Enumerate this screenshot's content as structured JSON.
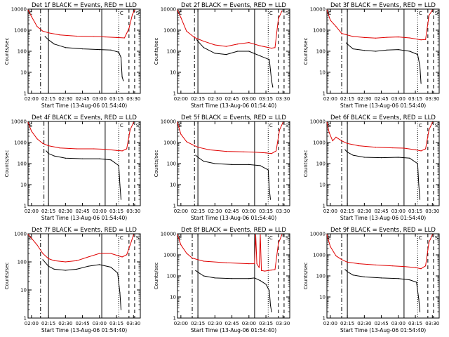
{
  "figure": {
    "colors": {
      "events": "#000000",
      "lld": "#e00000",
      "frame": "#000000"
    },
    "xlabel": "Start Time (13-Aug-06 01:54:40)",
    "ylabel": "Counts/sec",
    "x_tick_labels": [
      "02:00",
      "02:15",
      "02:30",
      "02:45",
      "03:00",
      "03:15",
      "03:30"
    ],
    "y_tick_labels": [
      "1",
      "10",
      "100",
      "1000",
      "10000"
    ],
    "corner_markers": [
      "E",
      "C",
      "S"
    ]
  },
  "chart_data": [
    {
      "type": "line",
      "title": "Det 1f BLACK = Events, RED = LLD",
      "xlabel": "Start Time (13-Aug-06 01:54:40)",
      "ylabel": "Counts/sec",
      "xlim": [
        "01:57",
        "03:36"
      ],
      "ylim": [
        1,
        10000
      ],
      "yscale": "log",
      "vlines": [
        {
          "t": "02:08",
          "style": "dashdot"
        },
        {
          "t": "02:15",
          "style": "solid"
        },
        {
          "t": "03:02",
          "style": "solid"
        },
        {
          "t": "03:17",
          "style": "dotted"
        },
        {
          "t": "03:26",
          "style": "dashed"
        },
        {
          "t": "03:31",
          "style": "dashed"
        }
      ],
      "series": [
        {
          "name": "LLD",
          "color": "#e00000",
          "x": [
            "01:57",
            "02:00",
            "02:05",
            "02:10",
            "02:15",
            "02:25",
            "02:40",
            "02:55",
            "03:05",
            "03:15",
            "03:22",
            "03:26",
            "03:29",
            "03:31"
          ],
          "y": [
            9000,
            4500,
            1500,
            900,
            750,
            600,
            520,
            500,
            480,
            450,
            430,
            1200,
            5500,
            9000
          ]
        },
        {
          "name": "Events",
          "color": "#000000",
          "x": [
            "02:12",
            "02:15",
            "02:20",
            "02:30",
            "02:45",
            "03:00",
            "03:10",
            "03:17",
            "03:19",
            "03:20",
            "03:21"
          ],
          "y": [
            500,
            350,
            220,
            150,
            130,
            120,
            115,
            90,
            50,
            6,
            4
          ]
        }
      ]
    },
    {
      "type": "line",
      "title": "Det 2f BLACK = Events, RED = LLD",
      "xlabel": "Start Time (13-Aug-06 01:54:40)",
      "ylabel": "Counts/sec",
      "xlim": [
        "01:57",
        "03:36"
      ],
      "ylim": [
        1,
        10000
      ],
      "yscale": "log",
      "vlines": [
        {
          "t": "02:12",
          "style": "dashdot"
        },
        {
          "t": "02:15",
          "style": "solid"
        },
        {
          "t": "03:05",
          "style": "solid"
        },
        {
          "t": "03:17",
          "style": "dotted"
        },
        {
          "t": "03:26",
          "style": "dashed"
        },
        {
          "t": "03:31",
          "style": "dashed"
        }
      ],
      "series": [
        {
          "name": "LLD",
          "color": "#e00000",
          "x": [
            "01:57",
            "02:00",
            "02:05",
            "02:12",
            "02:20",
            "02:30",
            "02:40",
            "02:50",
            "03:00",
            "03:10",
            "03:20",
            "03:23",
            "03:26",
            "03:29"
          ],
          "y": [
            9000,
            4000,
            900,
            450,
            300,
            200,
            170,
            220,
            260,
            180,
            140,
            150,
            3500,
            8000
          ]
        },
        {
          "name": "Events",
          "color": "#000000",
          "x": [
            "02:14",
            "02:15",
            "02:20",
            "02:30",
            "02:40",
            "02:50",
            "03:00",
            "03:10",
            "03:18",
            "03:20",
            "03:21"
          ],
          "y": [
            350,
            300,
            150,
            80,
            70,
            100,
            100,
            60,
            40,
            4,
            2
          ]
        }
      ]
    },
    {
      "type": "line",
      "title": "Det 3f BLACK = Events, RED = LLD",
      "xlabel": "Start Time (13-Aug-06 01:54:40)",
      "ylabel": "Counts/sec",
      "xlim": [
        "01:57",
        "03:36"
      ],
      "ylim": [
        1,
        10000
      ],
      "yscale": "log",
      "vlines": [
        {
          "t": "02:10",
          "style": "dashdot"
        },
        {
          "t": "02:15",
          "style": "solid"
        },
        {
          "t": "03:05",
          "style": "solid"
        },
        {
          "t": "03:17",
          "style": "dotted"
        },
        {
          "t": "03:26",
          "style": "dashed"
        },
        {
          "t": "03:31",
          "style": "dashed"
        }
      ],
      "series": [
        {
          "name": "LLD",
          "color": "#e00000",
          "x": [
            "01:57",
            "02:00",
            "02:05",
            "02:10",
            "02:20",
            "02:30",
            "02:40",
            "02:50",
            "03:00",
            "03:10",
            "03:20",
            "03:24",
            "03:27",
            "03:30"
          ],
          "y": [
            9000,
            3000,
            1500,
            700,
            500,
            450,
            420,
            460,
            480,
            430,
            350,
            360,
            5000,
            9000
          ]
        },
        {
          "name": "Events",
          "color": "#000000",
          "x": [
            "02:14",
            "02:15",
            "02:20",
            "02:30",
            "02:40",
            "02:50",
            "03:00",
            "03:10",
            "03:17",
            "03:19",
            "03:20"
          ],
          "y": [
            250,
            220,
            130,
            110,
            100,
            115,
            120,
            100,
            70,
            20,
            3
          ]
        }
      ]
    },
    {
      "type": "line",
      "title": "Det 4f BLACK = Events, RED = LLD",
      "xlabel": "Start Time (13-Aug-06 01:54:40)",
      "ylabel": "Counts/sec",
      "xlim": [
        "01:57",
        "03:36"
      ],
      "ylim": [
        1,
        10000
      ],
      "yscale": "log",
      "vlines": [
        {
          "t": "02:11",
          "style": "dashdot"
        },
        {
          "t": "02:15",
          "style": "solid"
        },
        {
          "t": "03:05",
          "style": "solid"
        },
        {
          "t": "03:17",
          "style": "dotted"
        },
        {
          "t": "03:26",
          "style": "dashed"
        },
        {
          "t": "03:31",
          "style": "dashed"
        }
      ],
      "series": [
        {
          "name": "LLD",
          "color": "#e00000",
          "x": [
            "01:57",
            "02:00",
            "02:05",
            "02:10",
            "02:15",
            "02:25",
            "02:40",
            "02:55",
            "03:05",
            "03:15",
            "03:20",
            "03:24",
            "03:27",
            "03:30"
          ],
          "y": [
            9000,
            3500,
            1500,
            900,
            700,
            550,
            500,
            500,
            480,
            420,
            400,
            500,
            4000,
            9000
          ]
        },
        {
          "name": "Events",
          "color": "#000000",
          "x": [
            "02:13",
            "02:15",
            "02:20",
            "02:30",
            "02:45",
            "03:00",
            "03:10",
            "03:17",
            "03:18",
            "03:19"
          ],
          "y": [
            400,
            300,
            230,
            180,
            170,
            170,
            150,
            80,
            10,
            2
          ]
        }
      ]
    },
    {
      "type": "line",
      "title": "Det 5f BLACK = Events, RED = LLD",
      "xlabel": "Start Time (13-Aug-06 01:54:40)",
      "ylabel": "Counts/sec",
      "xlim": [
        "01:57",
        "03:36"
      ],
      "ylim": [
        1,
        10000
      ],
      "yscale": "log",
      "vlines": [
        {
          "t": "02:12",
          "style": "dashdot"
        },
        {
          "t": "02:15",
          "style": "solid"
        },
        {
          "t": "03:05",
          "style": "solid"
        },
        {
          "t": "03:17",
          "style": "dotted"
        },
        {
          "t": "03:26",
          "style": "dashed"
        },
        {
          "t": "03:31",
          "style": "dashed"
        }
      ],
      "series": [
        {
          "name": "LLD",
          "color": "#e00000",
          "x": [
            "01:57",
            "02:00",
            "02:05",
            "02:10",
            "02:15",
            "02:25",
            "02:40",
            "02:55",
            "03:05",
            "03:15",
            "03:20",
            "03:24",
            "03:27",
            "03:30"
          ],
          "y": [
            9000,
            2500,
            1100,
            800,
            600,
            450,
            380,
            360,
            350,
            320,
            300,
            400,
            4000,
            9000
          ]
        },
        {
          "name": "Events",
          "color": "#000000",
          "x": [
            "02:13",
            "02:15",
            "02:20",
            "02:30",
            "02:45",
            "03:00",
            "03:10",
            "03:17",
            "03:18",
            "03:19"
          ],
          "y": [
            250,
            200,
            130,
            100,
            90,
            90,
            80,
            50,
            6,
            2
          ]
        }
      ]
    },
    {
      "type": "line",
      "title": "Det 6f BLACK = Events, RED = LLD",
      "xlabel": "Start Time (13-Aug-06 01:54:40)",
      "ylabel": "Counts/sec",
      "xlim": [
        "01:57",
        "03:36"
      ],
      "ylim": [
        1,
        10000
      ],
      "yscale": "log",
      "vlines": [
        {
          "t": "02:10",
          "style": "dashdot"
        },
        {
          "t": "02:15",
          "style": "solid"
        },
        {
          "t": "03:05",
          "style": "solid"
        },
        {
          "t": "03:17",
          "style": "dotted"
        },
        {
          "t": "03:26",
          "style": "dashed"
        },
        {
          "t": "03:31",
          "style": "dashed"
        }
      ],
      "series": [
        {
          "name": "LLD",
          "color": "#e00000",
          "x": [
            "01:57",
            "01:59",
            "02:02",
            "02:05",
            "02:10",
            "02:15",
            "02:25",
            "02:40",
            "02:55",
            "03:05",
            "03:15",
            "03:20",
            "03:24",
            "03:27",
            "03:30"
          ],
          "y": [
            9000,
            3000,
            1200,
            1800,
            1200,
            900,
            700,
            600,
            560,
            540,
            450,
            400,
            500,
            4000,
            9000
          ]
        },
        {
          "name": "Events",
          "color": "#000000",
          "x": [
            "02:13",
            "02:15",
            "02:20",
            "02:30",
            "02:45",
            "03:00",
            "03:10",
            "03:17",
            "03:18",
            "03:19"
          ],
          "y": [
            450,
            350,
            250,
            200,
            190,
            200,
            180,
            100,
            10,
            2
          ]
        }
      ]
    },
    {
      "type": "line",
      "title": "Det 7f BLACK = Events, RED = LLD",
      "xlabel": "Start Time (13-Aug-06 01:54:40)",
      "ylabel": "Counts/sec",
      "xlim": [
        "01:57",
        "03:36"
      ],
      "ylim": [
        1,
        1000
      ],
      "yscale": "log",
      "vlines": [
        {
          "t": "02:08",
          "style": "dashdot"
        },
        {
          "t": "02:15",
          "style": "solid"
        },
        {
          "t": "03:02",
          "style": "solid"
        },
        {
          "t": "03:17",
          "style": "dotted"
        },
        {
          "t": "03:26",
          "style": "dashed"
        },
        {
          "t": "03:31",
          "style": "dashed"
        }
      ],
      "series": [
        {
          "name": "LLD",
          "color": "#e00000",
          "x": [
            "01:57",
            "02:00",
            "02:05",
            "02:10",
            "02:15",
            "02:20",
            "02:30",
            "02:40",
            "02:50",
            "03:00",
            "03:10",
            "03:20",
            "03:24",
            "03:27",
            "03:30"
          ],
          "y": [
            950,
            700,
            400,
            200,
            130,
            110,
            100,
            110,
            150,
            200,
            200,
            150,
            180,
            400,
            900
          ]
        },
        {
          "name": "Events",
          "color": "#000000",
          "x": [
            "02:10",
            "02:15",
            "02:20",
            "02:30",
            "02:40",
            "02:50",
            "03:00",
            "03:10",
            "03:16",
            "03:18",
            "03:19"
          ],
          "y": [
            120,
            70,
            55,
            50,
            55,
            70,
            80,
            65,
            40,
            8,
            2
          ]
        }
      ]
    },
    {
      "type": "line",
      "title": "Det 8f BLACK = Events, RED = LLD",
      "xlabel": "Start Time (13-Aug-06 01:54:40)",
      "ylabel": "Counts/sec",
      "xlim": [
        "01:57",
        "03:36"
      ],
      "ylim": [
        1,
        10000
      ],
      "yscale": "log",
      "vlines": [
        {
          "t": "02:10",
          "style": "dashdot"
        },
        {
          "t": "02:15",
          "style": "solid"
        },
        {
          "t": "03:05",
          "style": "solid"
        },
        {
          "t": "03:17",
          "style": "dotted"
        },
        {
          "t": "03:26",
          "style": "dashed"
        },
        {
          "t": "03:31",
          "style": "dashed"
        }
      ],
      "series": [
        {
          "name": "LLD",
          "color": "#e00000",
          "x": [
            "01:57",
            "02:00",
            "02:05",
            "02:10",
            "02:20",
            "02:40",
            "03:00",
            "03:05",
            "03:06",
            "03:07",
            "03:09",
            "03:10",
            "03:11",
            "03:14",
            "03:20",
            "03:23",
            "03:26",
            "03:29"
          ],
          "y": [
            9000,
            3000,
            1200,
            700,
            500,
            420,
            380,
            380,
            9000,
            380,
            250,
            9000,
            180,
            170,
            190,
            200,
            3500,
            9000
          ]
        },
        {
          "name": "Events",
          "color": "#000000",
          "x": [
            "02:13",
            "02:15",
            "02:20",
            "02:30",
            "02:45",
            "03:00",
            "03:05",
            "03:10",
            "03:15",
            "03:18",
            "03:19",
            "03:20"
          ],
          "y": [
            180,
            150,
            100,
            80,
            75,
            75,
            80,
            60,
            40,
            20,
            4,
            2
          ]
        }
      ]
    },
    {
      "type": "line",
      "title": "Det 9f BLACK = Events, RED = LLD",
      "xlabel": "Start Time (13-Aug-06 01:54:40)",
      "ylabel": "Counts/sec",
      "xlim": [
        "01:57",
        "03:36"
      ],
      "ylim": [
        1,
        10000
      ],
      "yscale": "log",
      "vlines": [
        {
          "t": "02:10",
          "style": "dashdot"
        },
        {
          "t": "02:15",
          "style": "solid"
        },
        {
          "t": "03:05",
          "style": "solid"
        },
        {
          "t": "03:17",
          "style": "dotted"
        },
        {
          "t": "03:26",
          "style": "dashed"
        },
        {
          "t": "03:31",
          "style": "dashed"
        }
      ],
      "series": [
        {
          "name": "LLD",
          "color": "#e00000",
          "x": [
            "01:57",
            "02:00",
            "02:05",
            "02:10",
            "02:15",
            "02:25",
            "02:40",
            "02:55",
            "03:05",
            "03:15",
            "03:20",
            "03:24",
            "03:27",
            "03:30"
          ],
          "y": [
            9000,
            2500,
            900,
            600,
            450,
            380,
            330,
            300,
            280,
            250,
            220,
            300,
            4000,
            9000
          ]
        },
        {
          "name": "Events",
          "color": "#000000",
          "x": [
            "02:13",
            "02:15",
            "02:20",
            "02:30",
            "02:45",
            "03:00",
            "03:10",
            "03:16",
            "03:18",
            "03:19"
          ],
          "y": [
            200,
            160,
            110,
            90,
            80,
            75,
            65,
            50,
            8,
            2
          ]
        }
      ]
    }
  ]
}
